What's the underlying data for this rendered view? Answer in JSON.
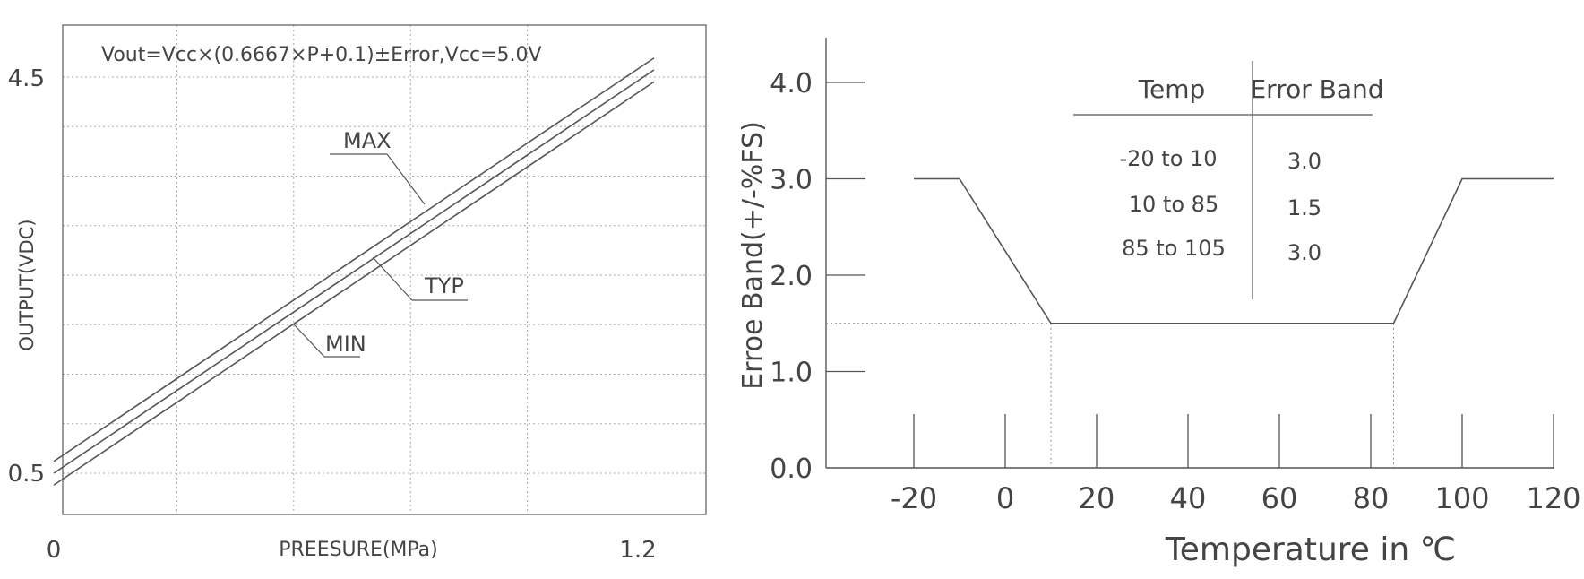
{
  "chart_data": [
    {
      "type": "line",
      "annotation": "Vout=Vcc×(0.6667×P+0.1)±Error,Vcc=5.0V",
      "xlabel": "PREESURE(MPa)",
      "ylabel": "OUTPUT(VDC)",
      "xlim": [
        0,
        1.2
      ],
      "ylim": [
        0.5,
        4.5
      ],
      "xticks": [
        "0",
        "1.2"
      ],
      "yticks": [
        "0.5",
        "4.5"
      ],
      "grid": true,
      "series": [
        {
          "name": "MAX",
          "x": [
            0,
            1.2
          ],
          "y": [
            0.62,
            4.62
          ]
        },
        {
          "name": "TYP",
          "x": [
            0,
            1.2
          ],
          "y": [
            0.5,
            4.5
          ]
        },
        {
          "name": "MIN",
          "x": [
            0,
            1.2
          ],
          "y": [
            0.38,
            4.38
          ]
        }
      ]
    },
    {
      "type": "line",
      "xlabel": "Temperature in ℃",
      "ylabel": "Erroe Band(+/-%FS)",
      "xlim": [
        -30,
        120
      ],
      "ylim": [
        0,
        4.5
      ],
      "xticks": [
        "-20",
        "0",
        "20",
        "40",
        "60",
        "80",
        "100",
        "120"
      ],
      "yticks": [
        "0.0",
        "1.0",
        "2.0",
        "3.0",
        "4.0"
      ],
      "series": [
        {
          "name": "",
          "x": [
            -20,
            -10,
            10,
            85,
            100,
            120
          ],
          "y": [
            3.0,
            3.0,
            1.5,
            1.5,
            3.0,
            3.0
          ]
        }
      ],
      "table": {
        "headers": [
          "Temp",
          "Error Band"
        ],
        "rows": [
          [
            "-20 to 10",
            "3.0"
          ],
          [
            "10 to 85",
            "1.5"
          ],
          [
            "85 to 105",
            "3.0"
          ]
        ]
      }
    }
  ]
}
